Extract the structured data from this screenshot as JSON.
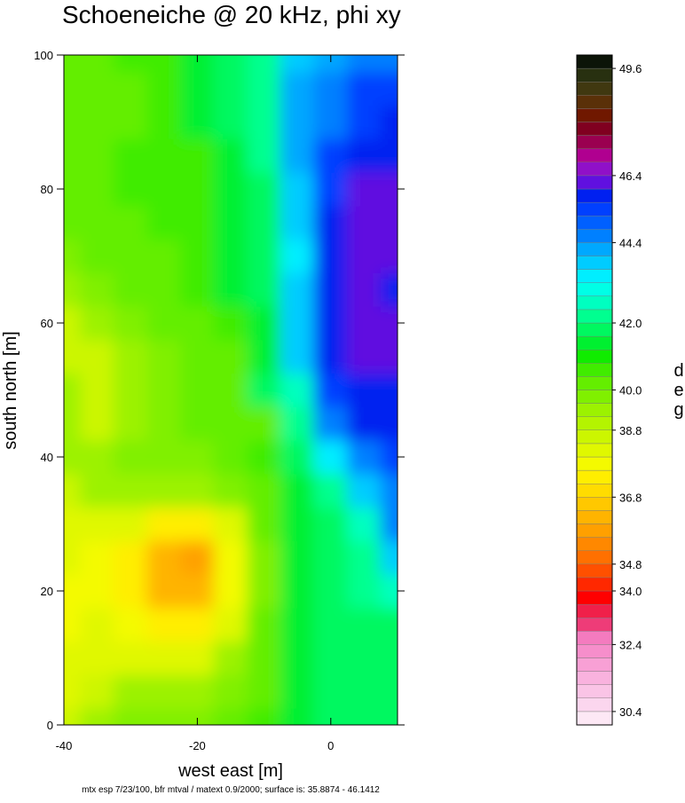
{
  "chart_data": {
    "type": "contour",
    "title": "Schoeneiche @ 20 kHz, phi xy",
    "x_label": "west east [m]",
    "y_label": "south north [m]",
    "footnote": "mtx esp 7/23/100, bfr mtval / matext 0.9/2000; surface is: 35.8874 - 46.1412",
    "xlim": [
      -40,
      10
    ],
    "ylim": [
      0,
      100
    ],
    "xticks": [
      -40,
      -20,
      0
    ],
    "yticks": [
      0,
      20,
      40,
      60,
      80,
      100
    ],
    "x": [
      -40,
      -35,
      -30,
      -25,
      -20,
      -15,
      -10,
      -5,
      0,
      5,
      10
    ],
    "y": [
      0,
      5,
      10,
      15,
      20,
      25,
      30,
      35,
      40,
      45,
      50,
      55,
      60,
      65,
      70,
      75,
      80,
      85,
      90,
      95,
      100
    ],
    "z": [
      [
        38.8,
        39.2,
        39.6,
        39.6,
        39.6,
        40,
        40.8,
        41.2,
        41.6,
        41.6,
        41.6
      ],
      [
        38.4,
        38.8,
        39.2,
        39.2,
        39.2,
        39.6,
        40.4,
        41.2,
        41.6,
        41.6,
        41.6
      ],
      [
        38,
        38.4,
        38.4,
        38.4,
        38.4,
        39.2,
        40.4,
        41.2,
        41.6,
        41.6,
        41.6
      ],
      [
        37.6,
        38,
        37.6,
        37.2,
        37.2,
        38.4,
        40,
        41.2,
        41.6,
        41.6,
        41.8
      ],
      [
        37.6,
        37.6,
        37.2,
        36.4,
        36,
        37.6,
        39.6,
        41.2,
        41.6,
        42,
        42.8
      ],
      [
        38,
        37.6,
        37.2,
        36.4,
        35.8,
        37.6,
        39.6,
        41.2,
        41.6,
        42.4,
        43.6
      ],
      [
        38.4,
        38.4,
        38,
        37.2,
        37.2,
        38.4,
        40,
        41.2,
        41.6,
        42.8,
        44.4
      ],
      [
        38.8,
        39.2,
        39.2,
        39.2,
        39.2,
        39.6,
        40.4,
        41.2,
        42,
        43.6,
        44.8
      ],
      [
        39.2,
        39.2,
        39.6,
        39.6,
        39.6,
        40,
        40.8,
        41.6,
        43.2,
        44.8,
        45.2
      ],
      [
        39.2,
        38.8,
        39.2,
        39.6,
        40,
        40.4,
        40,
        42.4,
        44.4,
        45.6,
        45.6
      ],
      [
        39.2,
        38.8,
        39.2,
        39.6,
        40,
        40.4,
        41.6,
        42.8,
        45.2,
        45.6,
        45.6
      ],
      [
        38.8,
        38.8,
        39.2,
        39.6,
        40,
        40.4,
        41.2,
        43.6,
        45.6,
        46,
        46
      ],
      [
        38.8,
        39.2,
        39.6,
        40,
        40.4,
        40.8,
        41.2,
        43.6,
        45.6,
        46,
        46
      ],
      [
        39.2,
        39.6,
        40,
        40.4,
        40.8,
        41.2,
        41.6,
        43.6,
        45.6,
        46,
        45.6
      ],
      [
        39.6,
        40,
        40.4,
        40.4,
        40.8,
        41.2,
        41.6,
        43.2,
        45.6,
        46,
        46
      ],
      [
        40,
        40,
        40.4,
        40.8,
        40.8,
        41.2,
        41.6,
        43.6,
        45.6,
        46,
        46
      ],
      [
        40,
        40.4,
        40.8,
        40.8,
        40.8,
        41.2,
        41.6,
        43.6,
        45.2,
        46,
        46
      ],
      [
        40.4,
        40.4,
        40.8,
        40.8,
        40.8,
        41.2,
        42,
        44,
        45.2,
        45.6,
        45.6
      ],
      [
        40.4,
        40.4,
        40.4,
        40.8,
        41.2,
        41.6,
        42.4,
        44,
        44.8,
        45.2,
        45.6
      ],
      [
        40.4,
        40,
        40.4,
        40.8,
        41.2,
        41.6,
        42.4,
        44,
        44.4,
        45.2,
        45.2
      ],
      [
        40.4,
        40.4,
        40.8,
        40.8,
        41.2,
        41.6,
        42.4,
        43.6,
        44,
        44.4,
        44.8
      ]
    ],
    "colorbar": {
      "label": "deg",
      "lim": [
        30,
        50
      ],
      "ticks": [
        30.4,
        32.4,
        {
          "value": 34,
          "label": "34.0"
        },
        34.8,
        36.8,
        38.8,
        {
          "value": 40,
          "label": "40.0"
        },
        {
          "value": 42,
          "label": "42.0"
        },
        44.4,
        46.4,
        49.6
      ],
      "colors": [
        "#fde8f5",
        "#fbd6ee",
        "#fac4e6",
        "#f9b2de",
        "#f8a0d5",
        "#f68ecb",
        "#f47bbf",
        "#ee3c78",
        "#f0204a",
        "#ff0000",
        "#ff2800",
        "#ff5000",
        "#ff7000",
        "#ff8800",
        "#ffa000",
        "#ffb400",
        "#ffc800",
        "#ffdc00",
        "#ffee00",
        "#f4fa00",
        "#e0f800",
        "#ccf600",
        "#b4f400",
        "#9cf200",
        "#80f000",
        "#64ee00",
        "#40ec00",
        "#10ec00",
        "#00f030",
        "#00f860",
        "#00ff90",
        "#00ffc0",
        "#00ffe6",
        "#00eeff",
        "#00ccff",
        "#00a8ff",
        "#0080ff",
        "#0060ff",
        "#0040ff",
        "#0020f0",
        "#6010e0",
        "#9010c8",
        "#b00090",
        "#9a0050",
        "#800020",
        "#701800",
        "#5a3008",
        "#403810",
        "#283010",
        "#0c1408"
      ]
    }
  }
}
